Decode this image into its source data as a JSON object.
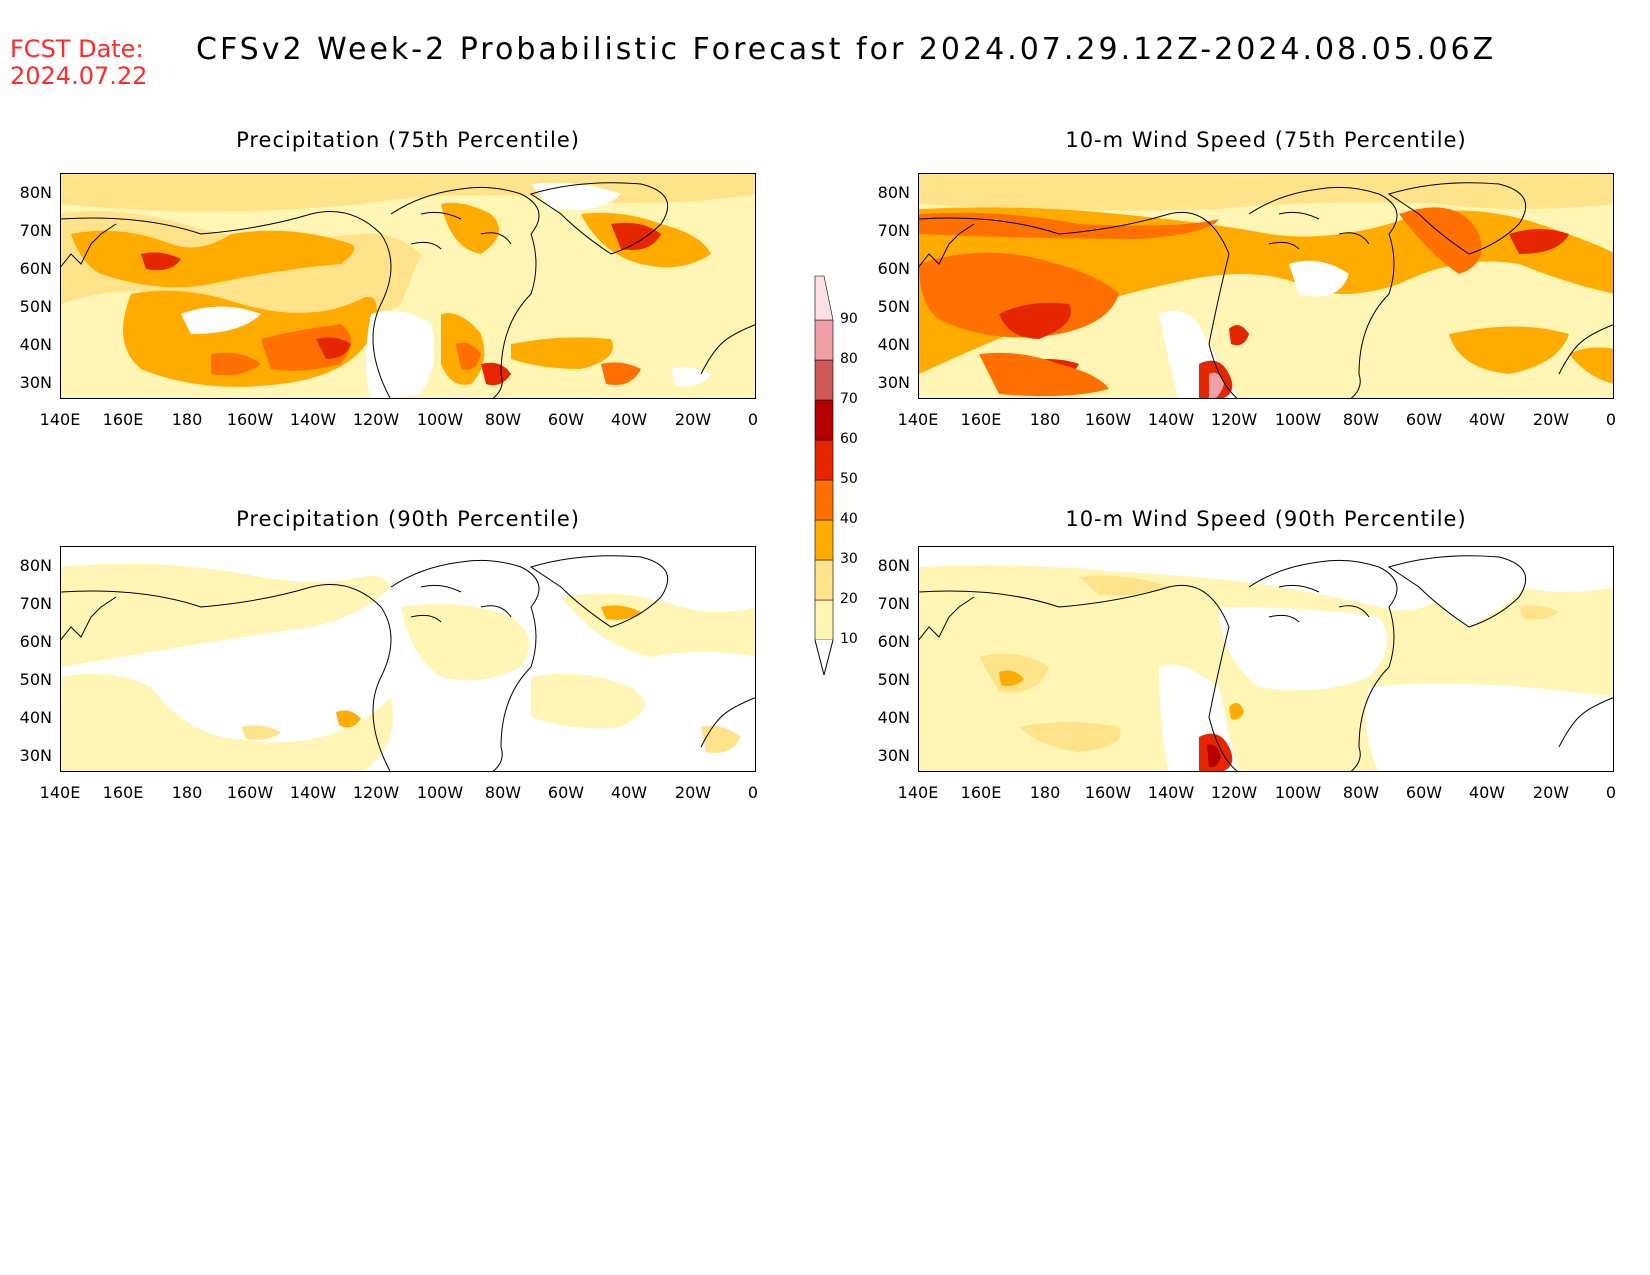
{
  "header": {
    "fcst_label": "FCST Date:",
    "fcst_date": "2024.07.22",
    "title": "CFSv2 Week-2 Probabilistic Forecast for 2024.07.29.12Z-2024.08.05.06Z"
  },
  "panels": [
    {
      "id": "precip75",
      "title": "Precipitation (75th Percentile)"
    },
    {
      "id": "wind75",
      "title": "10-m Wind Speed (75th Percentile)"
    },
    {
      "id": "precip90",
      "title": "Precipitation (90th Percentile)"
    },
    {
      "id": "wind90",
      "title": "10-m Wind Speed (90th Percentile)"
    }
  ],
  "lat_labels": [
    "80N",
    "70N",
    "60N",
    "50N",
    "40N",
    "30N"
  ],
  "lon_labels": [
    "140E",
    "160E",
    "180",
    "160W",
    "140W",
    "120W",
    "100W",
    "80W",
    "60W",
    "40W",
    "20W",
    "0"
  ],
  "colorbar": {
    "levels": [
      "10",
      "20",
      "30",
      "40",
      "50",
      "60",
      "70",
      "80",
      "90"
    ],
    "colors": [
      "#fff5b4",
      "#ffe38a",
      "#ffab00",
      "#ff7000",
      "#e62600",
      "#b40000",
      "#d05a5a",
      "#f0a0a8",
      "#fde0e4"
    ]
  }
}
